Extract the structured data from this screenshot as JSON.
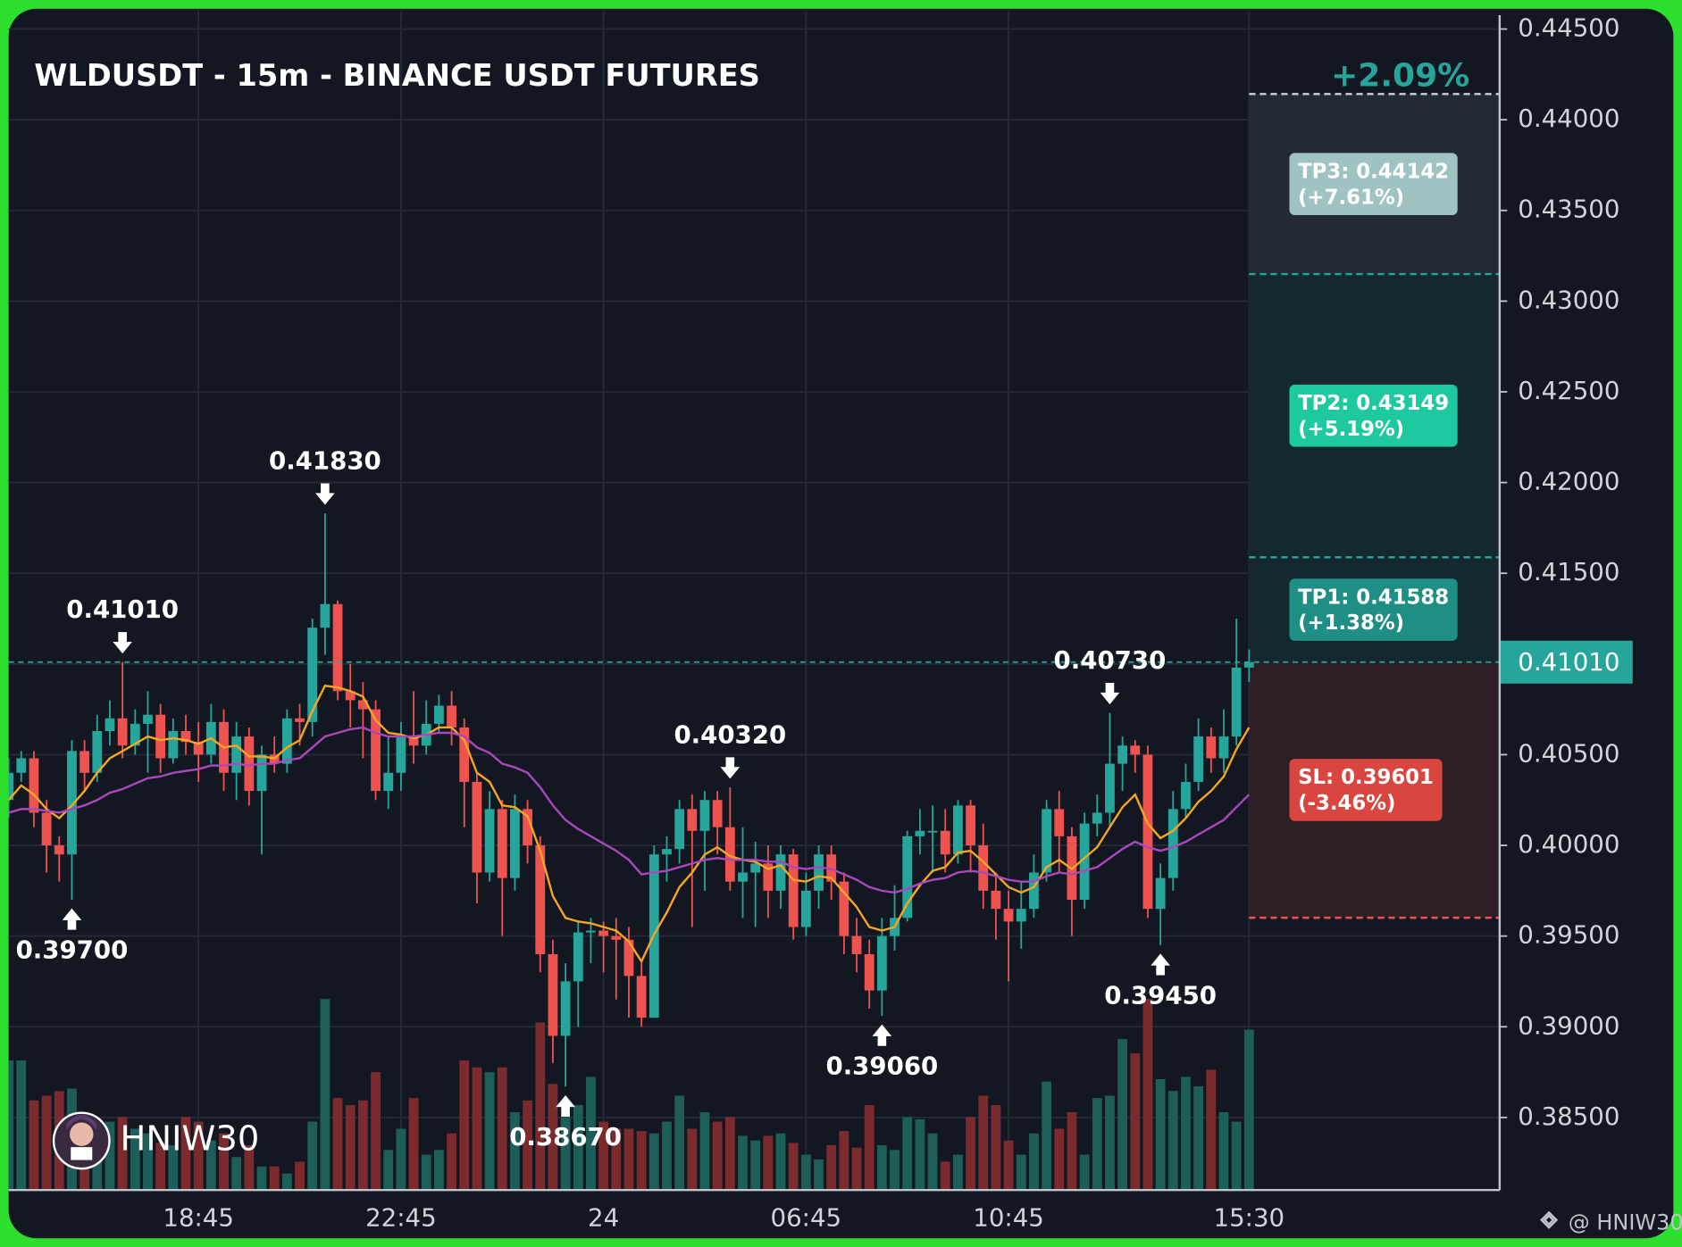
{
  "chart_data": {
    "type": "candlestick",
    "title": "WLDUSDT - 15m - BINANCE USDT FUTURES",
    "categories": [
      null,
      null,
      null,
      null,
      null,
      null,
      null,
      null,
      null,
      null,
      null,
      null,
      null,
      null,
      null,
      "18:45",
      null,
      null,
      null,
      null,
      null,
      null,
      null,
      null,
      null,
      null,
      null,
      null,
      null,
      null,
      null,
      "22:45",
      null,
      null,
      null,
      null,
      null,
      null,
      null,
      null,
      null,
      null,
      null,
      null,
      null,
      null,
      null,
      "24",
      null,
      null,
      null,
      null,
      null,
      null,
      null,
      null,
      null,
      null,
      null,
      null,
      null,
      null,
      null,
      "06:45",
      null,
      null,
      null,
      null,
      null,
      null,
      null,
      null,
      null,
      null,
      null,
      null,
      null,
      null,
      null,
      "10:45",
      null,
      null,
      null,
      null,
      null,
      null,
      null,
      null,
      null,
      null,
      null,
      null,
      null,
      null,
      null,
      null,
      null,
      null,
      "15:30"
    ],
    "open": [
      0.4025,
      0.404,
      0.4048,
      0.4018,
      0.4,
      0.3995,
      0.4052,
      0.404,
      0.4063,
      0.407,
      0.4055,
      0.4067,
      0.4072,
      0.4048,
      0.4063,
      0.4057,
      0.405,
      0.4068,
      0.404,
      0.406,
      0.403,
      0.405,
      0.4045,
      0.407,
      0.4068,
      0.412,
      0.4133,
      0.4085,
      0.408,
      0.4075,
      0.403,
      0.404,
      0.406,
      0.4055,
      0.4067,
      0.4077,
      0.4065,
      0.4035,
      0.3985,
      0.402,
      0.3982,
      0.402,
      0.4,
      0.394,
      0.3895,
      0.3925,
      0.3952,
      0.3953,
      0.395,
      0.3948,
      0.3928,
      0.3905,
      0.3995,
      0.3998,
      0.402,
      0.4008,
      0.4025,
      0.401,
      0.398,
      0.3985,
      0.399,
      0.3975,
      0.3995,
      0.3955,
      0.3975,
      0.3995,
      0.398,
      0.395,
      0.394,
      0.392,
      0.395,
      0.396,
      0.4005,
      0.4008,
      0.4008,
      0.3995,
      0.4022,
      0.4,
      0.3975,
      0.3965,
      0.3958,
      0.3965,
      0.3985,
      0.402,
      0.4005,
      0.397,
      0.4012,
      0.4018,
      0.4045,
      0.4055,
      0.405,
      0.3965,
      0.3982,
      0.402,
      0.4035,
      0.406,
      0.4048,
      0.406,
      0.4098
    ],
    "high": [
      0.4048,
      0.4052,
      0.4052,
      0.4025,
      0.4005,
      0.4058,
      0.4058,
      0.4072,
      0.408,
      0.4101,
      0.4075,
      0.4085,
      0.4078,
      0.407,
      0.4072,
      0.4068,
      0.4078,
      0.4075,
      0.4068,
      0.4065,
      0.4055,
      0.406,
      0.4075,
      0.4078,
      0.4125,
      0.4183,
      0.4135,
      0.41,
      0.409,
      0.408,
      0.406,
      0.4068,
      0.4085,
      0.408,
      0.4083,
      0.4085,
      0.407,
      0.404,
      0.403,
      0.4025,
      0.4028,
      0.4025,
      0.4005,
      0.3948,
      0.3935,
      0.3958,
      0.396,
      0.3958,
      0.396,
      0.3955,
      0.3935,
      0.4,
      0.4005,
      0.4025,
      0.4028,
      0.403,
      0.403,
      0.4032,
      0.401,
      0.4002,
      0.4,
      0.4,
      0.3998,
      0.3985,
      0.4,
      0.4,
      0.3985,
      0.396,
      0.3948,
      0.396,
      0.3978,
      0.4008,
      0.402,
      0.4022,
      0.402,
      0.4025,
      0.4025,
      0.4012,
      0.3985,
      0.3975,
      0.398,
      0.3995,
      0.4025,
      0.403,
      0.401,
      0.4018,
      0.4028,
      0.4073,
      0.406,
      0.4058,
      0.4055,
      0.399,
      0.403,
      0.4045,
      0.407,
      0.4065,
      0.4075,
      0.4125,
      0.4108
    ],
    "low": [
      0.4015,
      0.4035,
      0.401,
      0.3985,
      0.398,
      0.397,
      0.403,
      0.4035,
      0.4055,
      0.4048,
      0.405,
      0.404,
      0.404,
      0.4045,
      0.405,
      0.4035,
      0.4045,
      0.403,
      0.4025,
      0.4022,
      0.3995,
      0.404,
      0.404,
      0.4055,
      0.406,
      0.4105,
      0.408,
      0.4065,
      0.4048,
      0.4025,
      0.402,
      0.403,
      0.4045,
      0.405,
      0.4062,
      0.4055,
      0.401,
      0.3968,
      0.398,
      0.395,
      0.3975,
      0.399,
      0.393,
      0.388,
      0.3867,
      0.39,
      0.3935,
      0.393,
      0.3915,
      0.3905,
      0.39,
      0.3905,
      0.398,
      0.399,
      0.3955,
      0.3975,
      0.3995,
      0.3975,
      0.396,
      0.3955,
      0.396,
      0.3965,
      0.3948,
      0.395,
      0.3965,
      0.397,
      0.394,
      0.393,
      0.391,
      0.3906,
      0.3942,
      0.3958,
      0.3995,
      0.3985,
      0.3985,
      0.399,
      0.3985,
      0.3965,
      0.3948,
      0.3925,
      0.3943,
      0.396,
      0.398,
      0.3985,
      0.395,
      0.3965,
      0.4005,
      0.401,
      0.403,
      0.404,
      0.396,
      0.3945,
      0.3975,
      0.4015,
      0.403,
      0.404,
      0.404,
      0.4055,
      0.409
    ],
    "close": [
      0.404,
      0.4048,
      0.4018,
      0.4,
      0.3995,
      0.4052,
      0.404,
      0.4063,
      0.407,
      0.4055,
      0.4067,
      0.4072,
      0.4048,
      0.4063,
      0.4057,
      0.405,
      0.4068,
      0.404,
      0.406,
      0.403,
      0.405,
      0.4045,
      0.407,
      0.4068,
      0.412,
      0.4133,
      0.4085,
      0.408,
      0.4075,
      0.403,
      0.404,
      0.406,
      0.4055,
      0.4067,
      0.4077,
      0.4065,
      0.4035,
      0.3985,
      0.402,
      0.3982,
      0.402,
      0.4,
      0.394,
      0.3895,
      0.3925,
      0.3952,
      0.3953,
      0.395,
      0.3948,
      0.3928,
      0.3905,
      0.3995,
      0.3998,
      0.402,
      0.4008,
      0.4025,
      0.401,
      0.398,
      0.3985,
      0.399,
      0.3975,
      0.3995,
      0.3955,
      0.3975,
      0.3995,
      0.398,
      0.395,
      0.394,
      0.392,
      0.395,
      0.396,
      0.4005,
      0.4008,
      0.4008,
      0.3995,
      0.4022,
      0.4,
      0.3975,
      0.3965,
      0.3958,
      0.3965,
      0.3985,
      0.402,
      0.4005,
      0.397,
      0.4012,
      0.4018,
      0.4045,
      0.4055,
      0.405,
      0.3965,
      0.3982,
      0.402,
      0.4035,
      0.406,
      0.4048,
      0.406,
      0.4098,
      0.4101
    ],
    "volume": [
      55,
      55,
      38,
      40,
      42,
      43,
      21,
      26,
      29,
      31,
      26,
      24,
      20,
      19,
      31,
      29,
      21,
      24,
      14,
      19,
      10,
      10,
      7,
      12,
      29,
      81,
      39,
      36,
      38,
      50,
      17,
      26,
      39,
      15,
      17,
      24,
      55,
      52,
      50,
      52,
      33,
      38,
      71,
      45,
      31,
      36,
      48,
      29,
      26,
      26,
      25,
      24,
      29,
      40,
      26,
      33,
      29,
      31,
      23,
      21,
      23,
      24,
      20,
      15,
      13,
      19,
      25,
      18,
      36,
      19,
      17,
      31,
      30,
      24,
      12,
      15,
      31,
      40,
      36,
      21,
      15,
      24,
      46,
      26,
      33,
      15,
      39,
      40,
      64,
      58,
      81,
      47,
      42,
      48,
      44,
      51,
      33,
      29,
      68
    ],
    "up_color": "#26a69a",
    "down_color": "#ef5350",
    "volume_up_color": "#1d5e58",
    "volume_down_color": "#7b2b2e",
    "overlays": [
      {
        "color": "#f5a623",
        "values": [
          0.4025,
          0.4033,
          0.4028,
          0.402,
          0.4015,
          0.4022,
          0.403,
          0.404,
          0.4048,
          0.4052,
          0.4056,
          0.406,
          0.4058,
          0.4059,
          0.4058,
          0.4056,
          0.4059,
          0.4054,
          0.4055,
          0.4049,
          0.4049,
          0.4048,
          0.4054,
          0.4058,
          0.4074,
          0.4088,
          0.4087,
          0.4085,
          0.4082,
          0.4069,
          0.4062,
          0.4061,
          0.4059,
          0.4061,
          0.4065,
          0.4065,
          0.4058,
          0.404,
          0.4035,
          0.4022,
          0.4021,
          0.4016,
          0.3997,
          0.3972,
          0.396,
          0.3958,
          0.3957,
          0.3955,
          0.3953,
          0.3947,
          0.3936,
          0.3951,
          0.3963,
          0.3977,
          0.3985,
          0.3995,
          0.3999,
          0.3994,
          0.3992,
          0.3991,
          0.3987,
          0.3989,
          0.3981,
          0.398,
          0.3983,
          0.3982,
          0.3974,
          0.3966,
          0.3955,
          0.3953,
          0.3955,
          0.3968,
          0.3978,
          0.3986,
          0.3988,
          0.3996,
          0.3997,
          0.3991,
          0.3984,
          0.3977,
          0.3974,
          0.3977,
          0.3988,
          0.3992,
          0.3987,
          0.3993,
          0.3999,
          0.401,
          0.4021,
          0.4028,
          0.4012,
          0.4004,
          0.4008,
          0.4015,
          0.4024,
          0.403,
          0.4038,
          0.4053,
          0.4065
        ]
      },
      {
        "color": "#ab47bc",
        "values": [
          0.4018,
          0.402,
          0.402,
          0.4019,
          0.4018,
          0.402,
          0.4022,
          0.4025,
          0.4029,
          0.4031,
          0.4034,
          0.4037,
          0.4038,
          0.404,
          0.4041,
          0.4042,
          0.4044,
          0.4044,
          0.4045,
          0.4044,
          0.4045,
          0.4045,
          0.4047,
          0.4048,
          0.4054,
          0.406,
          0.4062,
          0.4064,
          0.4065,
          0.4062,
          0.406,
          0.406,
          0.406,
          0.4061,
          0.4062,
          0.4062,
          0.406,
          0.4054,
          0.4051,
          0.4045,
          0.4043,
          0.404,
          0.4032,
          0.4022,
          0.4014,
          0.4009,
          0.4005,
          0.4001,
          0.3997,
          0.3992,
          0.3984,
          0.3985,
          0.3986,
          0.3988,
          0.399,
          0.3992,
          0.3993,
          0.3992,
          0.3992,
          0.3992,
          0.3991,
          0.3991,
          0.3988,
          0.3987,
          0.3988,
          0.3987,
          0.3984,
          0.3981,
          0.3977,
          0.3975,
          0.3974,
          0.3976,
          0.3979,
          0.3981,
          0.3982,
          0.3985,
          0.3986,
          0.3985,
          0.3983,
          0.3981,
          0.398,
          0.398,
          0.3983,
          0.3985,
          0.3984,
          0.3986,
          0.3988,
          0.3993,
          0.3998,
          0.4002,
          0.3999,
          0.3997,
          0.3999,
          0.4002,
          0.4006,
          0.401,
          0.4014,
          0.4021,
          0.4028
        ]
      }
    ],
    "ylim": [
      0.381,
      0.446
    ],
    "yticks": [
      {
        "value": 0.385,
        "label": "0.38500"
      },
      {
        "value": 0.39,
        "label": "0.39000"
      },
      {
        "value": 0.395,
        "label": "0.39500"
      },
      {
        "value": 0.4,
        "label": "0.40000"
      },
      {
        "value": 0.405,
        "label": "0.40500"
      },
      {
        "value": 0.41,
        "label": "0.41000"
      },
      {
        "value": 0.415,
        "label": "0.41500"
      },
      {
        "value": 0.42,
        "label": "0.42000"
      },
      {
        "value": 0.425,
        "label": "0.42500"
      },
      {
        "value": 0.43,
        "label": "0.43000"
      },
      {
        "value": 0.435,
        "label": "0.43500"
      },
      {
        "value": 0.44,
        "label": "0.44000"
      },
      {
        "value": 0.445,
        "label": "0.44500"
      }
    ],
    "y2lim": [
      0,
      500
    ],
    "grid": true,
    "annotations": [
      {
        "label": "0.41010",
        "value": 0.4101,
        "at": "high"
      },
      {
        "label": "0.41830",
        "value": 0.4183,
        "at": "high"
      },
      {
        "label": "0.40320",
        "value": 0.4032,
        "at": "high"
      },
      {
        "label": "0.40730",
        "value": 0.4073,
        "at": "high"
      },
      {
        "label": "0.39700",
        "value": 0.397,
        "at": "low"
      },
      {
        "label": "0.38670",
        "value": 0.3867,
        "at": "low"
      },
      {
        "label": "0.39060",
        "value": 0.3906,
        "at": "low"
      },
      {
        "label": "0.39450",
        "value": 0.3945,
        "at": "low"
      }
    ],
    "trade": {
      "entry": {
        "value": 0.4101,
        "label": "0.41010",
        "color": "#26a69a"
      },
      "current_change": "+2.09%",
      "levels": [
        {
          "label": "TP1: 0.41588",
          "value": 0.41588,
          "change": "(+1.38%)",
          "color": "#1f8f85",
          "zone": "#14292f",
          "line": "#26a69a"
        },
        {
          "label": "TP2: 0.43149",
          "value": 0.43149,
          "change": "(+5.19%)",
          "color": "#1ec99f",
          "zone": "#14292f",
          "line": "#26a69a"
        },
        {
          "label": "TP3: 0.44142",
          "value": 0.44142,
          "change": "(+7.61%)",
          "color": "#9fc3c3",
          "zone": "#232a34",
          "line": "#c8d0d8"
        },
        {
          "label": "SL: 0.39601",
          "value": 0.39601,
          "change": "(-3.46%)",
          "color": "#d9463f",
          "zone": "#2e1f27",
          "line": "#ef5350"
        }
      ]
    }
  },
  "watermark": "HNIW30",
  "credit": "@ HNIW30"
}
